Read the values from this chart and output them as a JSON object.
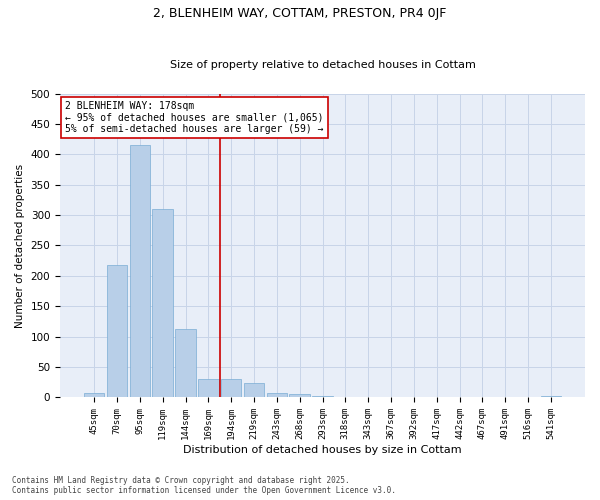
{
  "title_line1": "2, BLENHEIM WAY, COTTAM, PRESTON, PR4 0JF",
  "title_line2": "Size of property relative to detached houses in Cottam",
  "xlabel": "Distribution of detached houses by size in Cottam",
  "ylabel": "Number of detached properties",
  "bar_color": "#b8cfe8",
  "bar_edge_color": "#7aadd4",
  "background_color": "#ffffff",
  "plot_bg_color": "#e8eef8",
  "grid_color": "#c8d4e8",
  "categories": [
    "45sqm",
    "70sqm",
    "95sqm",
    "119sqm",
    "144sqm",
    "169sqm",
    "194sqm",
    "219sqm",
    "243sqm",
    "268sqm",
    "293sqm",
    "318sqm",
    "343sqm",
    "367sqm",
    "392sqm",
    "417sqm",
    "442sqm",
    "467sqm",
    "491sqm",
    "516sqm",
    "541sqm"
  ],
  "values": [
    8,
    218,
    415,
    310,
    113,
    30,
    30,
    23,
    7,
    6,
    2,
    0,
    0,
    0,
    0,
    0,
    0,
    0,
    0,
    0,
    2
  ],
  "vline_x": 5.5,
  "vline_color": "#cc0000",
  "annotation_text": "2 BLENHEIM WAY: 178sqm\n← 95% of detached houses are smaller (1,065)\n5% of semi-detached houses are larger (59) →",
  "annotation_box_color": "#ffffff",
  "annotation_box_edge_color": "#cc0000",
  "footnote1": "Contains HM Land Registry data © Crown copyright and database right 2025.",
  "footnote2": "Contains public sector information licensed under the Open Government Licence v3.0.",
  "ylim": [
    0,
    500
  ],
  "yticks": [
    0,
    50,
    100,
    150,
    200,
    250,
    300,
    350,
    400,
    450,
    500
  ]
}
